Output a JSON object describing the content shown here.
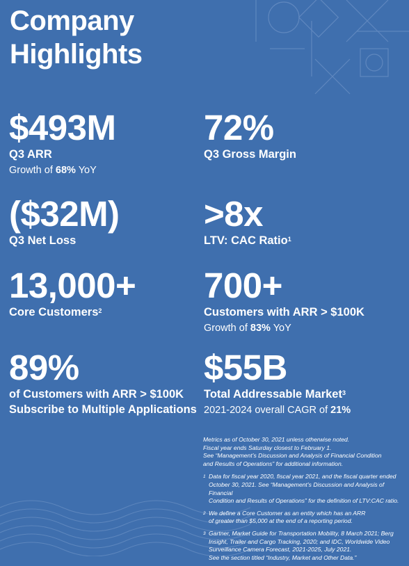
{
  "title_line1": "Company",
  "title_line2": "Highlights",
  "metrics": [
    {
      "value": "$493M",
      "label": "Q3 ARR",
      "sub_prefix": "Growth of ",
      "sub_bold": "68%",
      "sub_suffix": " YoY"
    },
    {
      "value": "72%",
      "label": "Q3 Gross Margin"
    },
    {
      "value": "($32M)",
      "label": "Q3 Net Loss"
    },
    {
      "value": ">8x",
      "label": "LTV: CAC Ratio",
      "label_sup": "1"
    },
    {
      "value": "13,000+",
      "label": "Core Customers",
      "label_sup": "2"
    },
    {
      "value": "700+",
      "label": "Customers with ARR > $100K",
      "sub_prefix": "Growth of ",
      "sub_bold": "83%",
      "sub_suffix": " YoY"
    },
    {
      "value": "89%",
      "label_line1": "of Customers with ARR > $100K",
      "label_line2": "Subscribe to Multiple Applications"
    },
    {
      "value": "$55B",
      "label": "Total Addressable Market",
      "label_sup": "3",
      "sub_prefix": "2021-2024 overall CAGR of ",
      "sub_bold": "21%"
    }
  ],
  "notes": {
    "intro": [
      "Metrics as of October 30, 2021 unless otherwise noted.",
      "Fiscal year ends Saturday closest to February 1.",
      "See “Management’s Discussion and Analysis of Financial Condition",
      "and Results of Operations” for additional information."
    ],
    "footnotes": [
      {
        "num": "1",
        "lines": [
          "Data for fiscal year 2020, fiscal year 2021, and the fiscal quarter ended",
          "October 30, 2021. See “Management’s Discussion and Analysis of Financial",
          "Condition and Results of Operations” for the definition of LTV:CAC ratio."
        ]
      },
      {
        "num": "2",
        "lines": [
          "We define a Core Customer as an entity which has an ARR",
          "of greater than $5,000 at the end of a reporting period."
        ]
      },
      {
        "num": "3",
        "lines": [
          "Gartner, Market Guide for Transportation Mobility, 8 March 2021; Berg",
          "Insight, Trailer and Cargo Tracking, 2020; and IDC, Worldwide Video",
          "Surveillance Camera Forecast, 2021-2025, July 2021.",
          "See the section titled “Industry, Market and Other Data.”"
        ]
      }
    ]
  }
}
